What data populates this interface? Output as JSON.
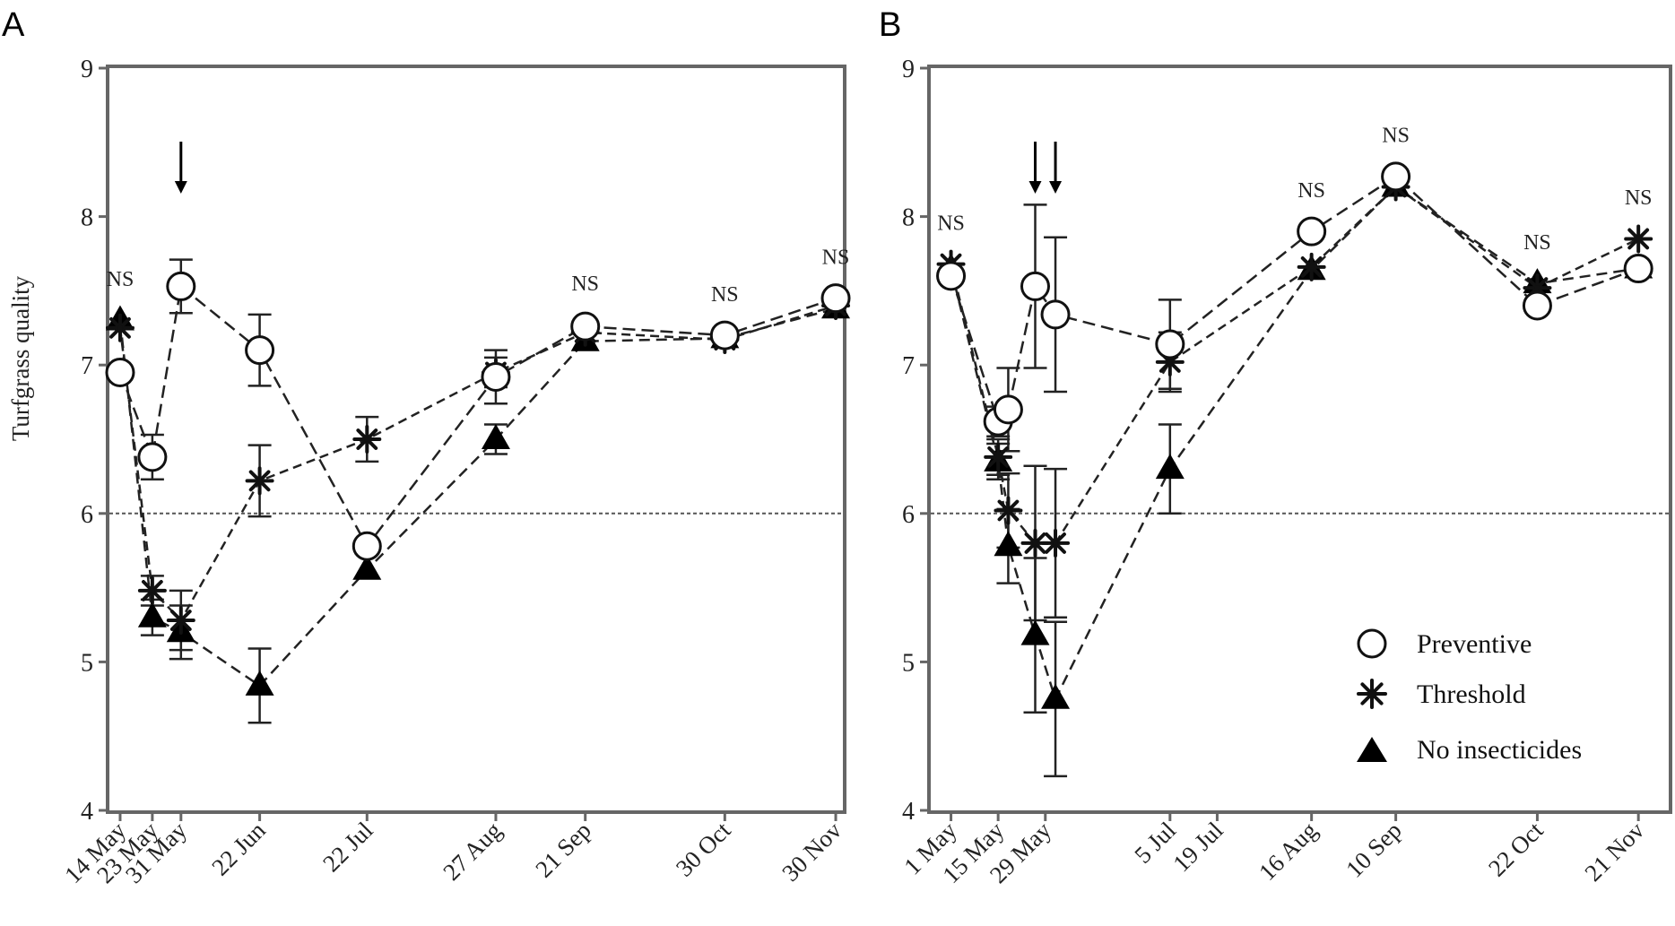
{
  "figure": {
    "ylabel": "Turfgrass quality",
    "legend": {
      "placement": "bottom-right of panel B",
      "entries": [
        {
          "key": "preventive",
          "label": "Preventive",
          "marker": "open-circle"
        },
        {
          "key": "threshold",
          "label": "Threshold",
          "marker": "asterisk"
        },
        {
          "key": "none",
          "label": "No insecticides",
          "marker": "filled-triangle"
        }
      ]
    }
  },
  "chart_data": [
    {
      "type": "line",
      "panel": "A",
      "ylabel": "Turfgrass quality",
      "xlabel": "",
      "ylim": [
        4,
        9
      ],
      "yticks": [
        4,
        5,
        6,
        7,
        8,
        9
      ],
      "x_scale": "time",
      "xlim": [
        "2011-05-11",
        "2011-12-02"
      ],
      "x": [
        "2011-05-14",
        "2011-05-23",
        "2011-05-31",
        "2011-06-22",
        "2011-07-22",
        "2011-08-27",
        "2011-09-21",
        "2011-10-30",
        "2011-11-30"
      ],
      "x_tick_labels": [
        "14 May",
        "23 May",
        "31 May",
        "22 Jun",
        "22 Jul",
        "27 Aug",
        "21 Sep",
        "30 Oct",
        "30 Nov"
      ],
      "reference_line": 6,
      "arrows": [
        "2011-05-31"
      ],
      "ns_labels": [
        {
          "x": "2011-05-14",
          "text": "NS"
        },
        {
          "x": "2011-09-21",
          "text": "NS"
        },
        {
          "x": "2011-10-30",
          "text": "NS"
        },
        {
          "x": "2011-11-30",
          "text": "NS"
        }
      ],
      "series": [
        {
          "key": "preventive",
          "name": "Preventive",
          "values": [
            6.95,
            6.38,
            7.53,
            7.1,
            5.78,
            6.92,
            7.26,
            7.2,
            7.45
          ],
          "errors": [
            0.05,
            0.15,
            0.18,
            0.24,
            0.05,
            0.18,
            0.06,
            0.05,
            0.05
          ]
        },
        {
          "key": "threshold",
          "name": "Threshold",
          "values": [
            7.25,
            5.48,
            5.28,
            6.22,
            6.5,
            6.95,
            7.22,
            7.17,
            7.4
          ],
          "errors": [
            0.05,
            0.1,
            0.2,
            0.24,
            0.15,
            0.1,
            0.05,
            0.05,
            0.05
          ]
        },
        {
          "key": "none",
          "name": "No insecticides",
          "values": [
            7.3,
            5.3,
            5.2,
            4.84,
            5.62,
            6.5,
            7.16,
            7.18,
            7.38
          ],
          "errors": [
            0.05,
            0.12,
            0.18,
            0.25,
            0.05,
            0.1,
            0.05,
            0.05,
            0.05
          ]
        }
      ]
    },
    {
      "type": "line",
      "panel": "B",
      "ylabel": "",
      "xlabel": "",
      "ylim": [
        4,
        9
      ],
      "yticks": [
        4,
        5,
        6,
        7,
        8,
        9
      ],
      "x_scale": "time",
      "xlim": [
        "2012-04-25",
        "2012-11-30"
      ],
      "x": [
        "2012-05-01",
        "2012-05-15",
        "2012-05-18",
        "2012-05-26",
        "2012-06-01",
        "2012-07-05",
        "2012-08-16",
        "2012-09-10",
        "2012-10-22",
        "2012-11-21"
      ],
      "x_tick_positions": [
        "2012-05-01",
        "2012-05-15",
        "2012-05-29",
        "2012-07-05",
        "2012-07-19",
        "2012-08-16",
        "2012-09-10",
        "2012-10-22",
        "2012-11-21"
      ],
      "x_tick_labels": [
        "1 May",
        "15 May",
        "29 May",
        "5 Jul",
        "19 Jul",
        "16 Aug",
        "10 Sep",
        "22 Oct",
        "21 Nov"
      ],
      "reference_line": 6,
      "arrows": [
        "2012-05-26",
        "2012-06-01"
      ],
      "ns_labels": [
        {
          "x": "2012-05-01",
          "text": "NS"
        },
        {
          "x": "2012-08-16",
          "text": "NS"
        },
        {
          "x": "2012-09-10",
          "text": "NS"
        },
        {
          "x": "2012-10-22",
          "text": "NS"
        },
        {
          "x": "2012-11-21",
          "text": "NS"
        }
      ],
      "series": [
        {
          "key": "preventive",
          "name": "Preventive",
          "values": [
            7.6,
            6.62,
            6.7,
            7.53,
            7.34,
            7.14,
            7.9,
            8.27,
            7.4,
            7.65
          ],
          "errors": [
            0.05,
            0.1,
            0.28,
            0.55,
            0.52,
            0.3,
            0.05,
            0.05,
            0.05,
            0.05
          ]
        },
        {
          "key": "threshold",
          "name": "Threshold",
          "values": [
            7.68,
            6.38,
            6.02,
            5.8,
            5.8,
            7.02,
            7.66,
            8.2,
            7.52,
            7.85
          ],
          "errors": [
            0.05,
            0.12,
            0.25,
            0.52,
            0.5,
            0.2,
            0.05,
            0.05,
            0.05,
            0.05
          ]
        },
        {
          "key": "none",
          "name": "No insecticides",
          "values": [
            7.65,
            6.35,
            5.78,
            5.18,
            4.75,
            6.3,
            7.64,
            8.2,
            7.55,
            7.65
          ],
          "errors": [
            0.05,
            0.12,
            0.25,
            0.52,
            0.52,
            0.3,
            0.05,
            0.05,
            0.05,
            0.05
          ]
        }
      ]
    }
  ]
}
